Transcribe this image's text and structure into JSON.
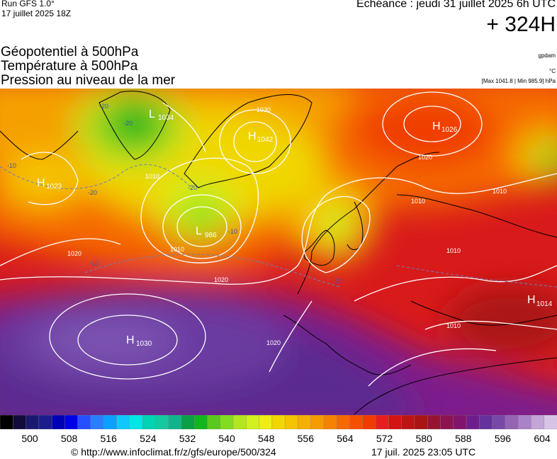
{
  "header": {
    "run": "Run GFS 1.0°",
    "run_date": "17 juillet 2025 18Z",
    "echeance": "Echéance : jeudi 31 juillet 2025 6h UTC",
    "lead": "+ 324H"
  },
  "titles": [
    "Géopotentiel à 500hPa",
    "Température à 500hPa",
    "Pression au niveau de la mer"
  ],
  "units": {
    "geopotential": "gpdam",
    "temperature": "°C",
    "pressure_extremes": "[Max 1041.8 | Min 985.9] hPa"
  },
  "pressure_centers": [
    {
      "type": "L",
      "value": "1034"
    },
    {
      "type": "H",
      "value": "1042"
    },
    {
      "type": "H",
      "value": "1026"
    },
    {
      "type": "H",
      "value": "1023"
    },
    {
      "type": "L",
      "value": "986"
    },
    {
      "type": "H",
      "value": "1030"
    },
    {
      "type": "H",
      "value": "1014"
    }
  ],
  "isobar_labels": [
    "1030",
    "1020",
    "1010",
    "1010",
    "1020",
    "1010",
    "1010",
    "1020",
    "1010",
    "1020",
    "1010"
  ],
  "temperature_labels": [
    "-20",
    "-20",
    "-20",
    "-20",
    "-10",
    "-10",
    "-10",
    "-10"
  ],
  "colors": {
    "ocean_south": "#5a2a90",
    "mid_red": "#d81a1a",
    "orange": "#f5a000",
    "yellow": "#f0e000",
    "green": "#40b020",
    "isobar": "#ffffff",
    "coast": "#000000"
  },
  "colorscale": {
    "colors": [
      "#000000",
      "#120b3c",
      "#191970",
      "#1c1c8c",
      "#0000b4",
      "#0000e6",
      "#2450ff",
      "#2a7dff",
      "#0aa0ff",
      "#10c8ff",
      "#00e6e6",
      "#00d2b4",
      "#14c8a0",
      "#10b48c",
      "#0aa046",
      "#14b41e",
      "#5ac81e",
      "#82dc1e",
      "#b4e61e",
      "#d2f01e",
      "#eeee14",
      "#f0d700",
      "#f5c300",
      "#f5af00",
      "#f59b00",
      "#f58200",
      "#f56900",
      "#f55000",
      "#f03c00",
      "#e61e1e",
      "#d21414",
      "#be1414",
      "#aa1414",
      "#961432",
      "#8c1450",
      "#82146e",
      "#6e1e8c",
      "#64329a",
      "#7848a8",
      "#9664b4",
      "#aa82c8",
      "#c3a5d7",
      "#d7c3e6"
    ],
    "ticks": [
      "500",
      "508",
      "516",
      "524",
      "532",
      "540",
      "548",
      "556",
      "564",
      "572",
      "580",
      "588",
      "596",
      "604"
    ]
  },
  "footer": {
    "url": "© http://www.infoclimat.fr/z/gfs/europe/500/324",
    "date": "17 juil. 2025 23:05 UTC"
  }
}
